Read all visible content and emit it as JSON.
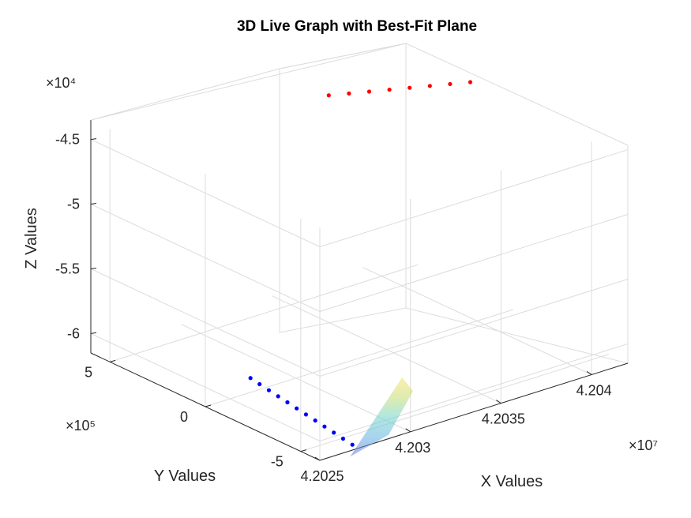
{
  "chart_data": {
    "type": "scatter",
    "title": "3D Live Graph with Best-Fit Plane",
    "xlabel": "X Values",
    "ylabel": "Y Values",
    "zlabel": "Z Values",
    "grid": true,
    "x_multiplier": "×10⁷",
    "y_multiplier": "×10⁵",
    "z_multiplier": "×10⁴",
    "x_ticks": [
      "4.2025",
      "4.203",
      "4.2035",
      "4.204"
    ],
    "y_ticks": [
      "-5",
      "0",
      "5"
    ],
    "z_ticks": [
      "-4.5",
      "-5",
      "-5.5",
      "-6"
    ],
    "xlim": [
      42025000,
      42042000
    ],
    "ylim": [
      -600000,
      600000
    ],
    "zlim": [
      -61500,
      -43500
    ],
    "series": [
      {
        "color": "#ff0000",
        "x": [
          42035500,
          42036300,
          42037100,
          42037900,
          42038700,
          42039500,
          42040300,
          42041100
        ],
        "y": [
          350000,
          320000,
          290000,
          260000,
          230000,
          200000,
          170000,
          140000
        ],
        "z": [
          -44500,
          -44500,
          -44500,
          -44500,
          -44500,
          -44500,
          -44500,
          -44500
        ]
      },
      {
        "color": "#0000ff",
        "x": [
          42028230,
          42028100,
          42027980,
          42027860,
          42027740,
          42027620,
          42027500,
          42027380,
          42027260,
          42027140,
          42027020,
          42026900
        ],
        "y": [
          70000,
          10000,
          -50000,
          -110000,
          -170000,
          -230000,
          -290000,
          -350000,
          -410000,
          -470000,
          -530000,
          -590000
        ],
        "z": [
          -61200,
          -61200,
          -61200,
          -61200,
          -61200,
          -61200,
          -61200,
          -61200,
          -61200,
          -61200,
          -61200,
          -61200
        ]
      }
    ],
    "surface": {
      "type": "best-fit-plane",
      "colormap": "parula",
      "opacity": 0.55,
      "x_range": [
        42025800,
        42028800
      ],
      "y_range": [
        -600000,
        100000
      ],
      "z": -61200
    }
  }
}
